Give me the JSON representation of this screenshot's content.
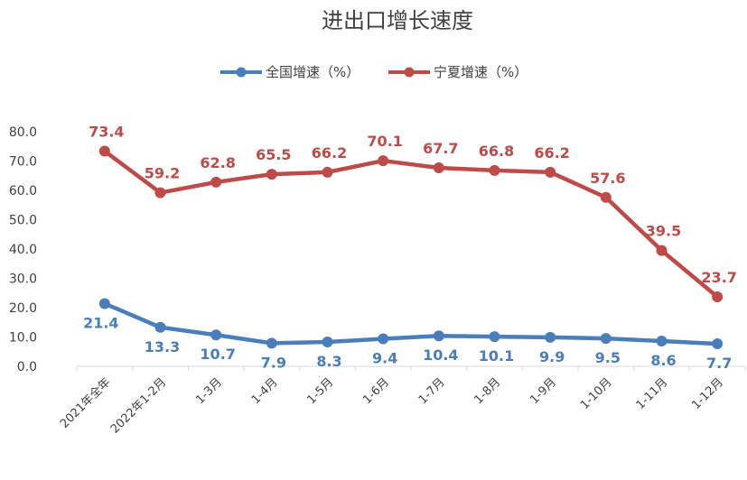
{
  "chart_data": {
    "type": "line",
    "title": "进出口增长速度",
    "categories": [
      "2021年全年",
      "2022年1-2月",
      "1-3月",
      "1-4月",
      "1-5月",
      "1-6月",
      "1-7月",
      "1-8月",
      "1-9月",
      "1-10月",
      "1-11月",
      "1-12月"
    ],
    "series": [
      {
        "name": "全国增速（%）",
        "color": "#4a7ebb",
        "values": [
          21.4,
          13.3,
          10.7,
          7.9,
          8.3,
          9.4,
          10.4,
          10.1,
          9.9,
          9.5,
          8.6,
          7.7
        ]
      },
      {
        "name": "宁夏增速（%）",
        "color": "#be4b48",
        "values": [
          73.4,
          59.2,
          62.8,
          65.5,
          66.2,
          70.1,
          67.7,
          66.8,
          66.2,
          57.6,
          39.5,
          23.7
        ]
      }
    ],
    "y_ticks": [
      "0.0",
      "10.0",
      "20.0",
      "30.0",
      "40.0",
      "50.0",
      "60.0",
      "70.0",
      "80.0"
    ],
    "ylim": [
      0,
      80
    ],
    "grid": false,
    "legend_position": "top-center"
  }
}
